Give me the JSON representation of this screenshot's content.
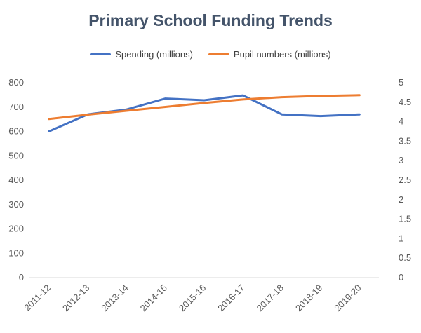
{
  "chart_data": {
    "type": "line",
    "title": "Primary School Funding Trends",
    "categories": [
      "2011-12",
      "2012-13",
      "2013-14",
      "2014-15",
      "2015-16",
      "2016-17",
      "2017-18",
      "2018-19",
      "2019-20"
    ],
    "series": [
      {
        "name": "Spending (millions)",
        "axis": "left",
        "color": "#4472c4",
        "values": [
          600,
          670,
          690,
          735,
          728,
          748,
          670,
          663,
          670
        ]
      },
      {
        "name": "Pupil numbers (millions)",
        "axis": "right",
        "color": "#ed7d31",
        "values": [
          4.07,
          4.18,
          4.28,
          4.38,
          4.48,
          4.57,
          4.63,
          4.66,
          4.68
        ]
      }
    ],
    "y_left": {
      "min": 0,
      "max": 800,
      "ticks": [
        "800",
        "700",
        "600",
        "500",
        "400",
        "300",
        "200",
        "100",
        "0"
      ]
    },
    "y_right": {
      "min": 0,
      "max": 5,
      "ticks": [
        "5",
        "4.5",
        "4",
        "3.5",
        "3",
        "2.5",
        "2",
        "1.5",
        "1",
        "0.5",
        "0"
      ]
    },
    "legend": "top",
    "grid": false
  }
}
